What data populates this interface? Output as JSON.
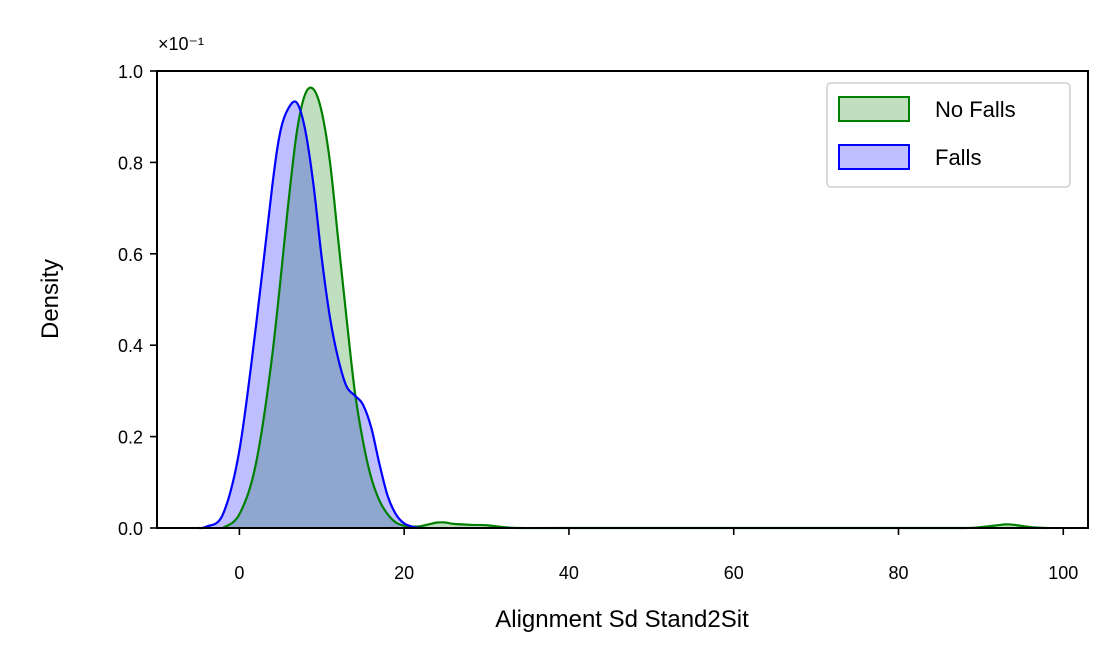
{
  "chart_data": {
    "type": "area",
    "xlabel": "Alignment Sd Stand2Sit",
    "ylabel": "Density",
    "y_scale_label": "×10⁻¹",
    "xlim": [
      -10,
      103
    ],
    "ylim": [
      0,
      1.0
    ],
    "x_ticks": [
      0,
      20,
      40,
      60,
      80,
      100
    ],
    "x_tick_labels": [
      "0",
      "20",
      "40",
      "60",
      "80",
      "100"
    ],
    "y_ticks": [
      0,
      0.2,
      0.4,
      0.6,
      0.8,
      1.0
    ],
    "y_tick_labels": [
      "0.0",
      "0.2",
      "0.4",
      "0.6",
      "0.8",
      "1.0"
    ],
    "legend_position": "top-right",
    "series": [
      {
        "name": "No Falls",
        "color": "#008000",
        "fill": "rgba(0,128,0,0.25)",
        "x": [
          -2,
          0,
          2,
          4,
          6,
          7,
          8,
          9,
          10,
          11,
          12,
          13,
          14,
          15,
          16,
          17,
          18,
          19,
          20,
          21,
          22,
          23,
          24,
          25,
          26,
          28,
          30,
          32,
          34,
          40,
          60,
          80,
          88,
          90,
          92,
          93,
          94,
          96,
          98
        ],
        "y": [
          0.0,
          0.03,
          0.14,
          0.38,
          0.72,
          0.87,
          0.95,
          0.96,
          0.91,
          0.8,
          0.63,
          0.46,
          0.3,
          0.19,
          0.11,
          0.06,
          0.03,
          0.012,
          0.005,
          0.003,
          0.004,
          0.008,
          0.012,
          0.012,
          0.009,
          0.007,
          0.006,
          0.002,
          0.0,
          0.0,
          0.0,
          0.0,
          0.0,
          0.002,
          0.006,
          0.008,
          0.007,
          0.002,
          0.0
        ]
      },
      {
        "name": "Falls",
        "color": "#0000ff",
        "fill": "rgba(0,0,255,0.25)",
        "x": [
          -5,
          -4,
          -2,
          0,
          2,
          4,
          5,
          6,
          7,
          8,
          9,
          10,
          11,
          12,
          13,
          14,
          15,
          16,
          17,
          18,
          19,
          20,
          21,
          22
        ],
        "y": [
          0.0,
          0.003,
          0.03,
          0.17,
          0.44,
          0.75,
          0.87,
          0.92,
          0.93,
          0.87,
          0.75,
          0.59,
          0.46,
          0.37,
          0.31,
          0.29,
          0.27,
          0.22,
          0.14,
          0.07,
          0.03,
          0.01,
          0.003,
          0.0
        ]
      }
    ]
  }
}
